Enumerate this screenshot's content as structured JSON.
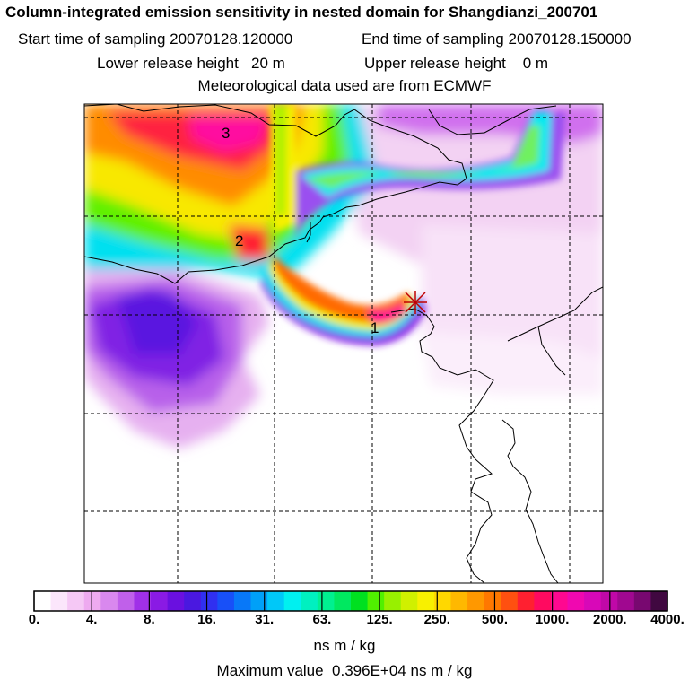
{
  "header": {
    "title": "Column-integrated emission sensitivity in nested domain for Shangdianzi_200701",
    "start_label": "Start time of sampling",
    "start_value": "20070128.120000",
    "end_label": "End time of sampling",
    "end_value": "20070128.150000",
    "lower_label": "Lower release height",
    "lower_value": "20 m",
    "upper_label": "Upper release height",
    "upper_value": "0 m",
    "met_line": "Meteorological data used are from ECMWF"
  },
  "map": {
    "trajectory_labels": [
      "1",
      "2",
      "3"
    ],
    "receptor_marker": "receptor-cross"
  },
  "colorbar": {
    "ticks": [
      "0.",
      "4.",
      "8.",
      "16.",
      "31.",
      "63.",
      "125.",
      "250.",
      "500.",
      "1000.",
      "2000.",
      "4000."
    ],
    "colors": [
      "#ffffff",
      "#fbe6fb",
      "#f5c8f5",
      "#eeaaf0",
      "#d988ee",
      "#c060ea",
      "#a030e8",
      "#8a1ae4",
      "#6a10e0",
      "#4a18e0",
      "#3030f0",
      "#1850f8",
      "#0878f8",
      "#00a0f8",
      "#00c8f8",
      "#00f0f0",
      "#00f0c0",
      "#00f090",
      "#00e860",
      "#00e020",
      "#50f000",
      "#98f000",
      "#d0f000",
      "#f8f000",
      "#ffd800",
      "#ffb800",
      "#ff9800",
      "#ff7800",
      "#ff5010",
      "#ff2030",
      "#ff0a60",
      "#ff0890",
      "#f008b0",
      "#d808b8",
      "#c008a8",
      "#a00890",
      "#780870",
      "#400840"
    ],
    "unit": "ns m / kg",
    "max_label": "Maximum value",
    "max_value": "0.396E+04 ns m / kg"
  }
}
